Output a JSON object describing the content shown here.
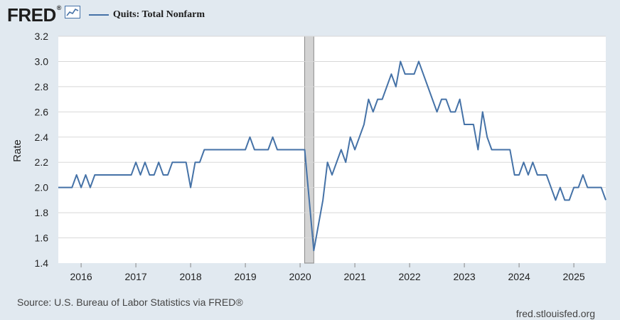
{
  "header": {
    "logo": "FRED",
    "logo_mark": "®",
    "series_label": "Quits: Total Nonfarm"
  },
  "icons": {
    "graph": "line-graph-icon"
  },
  "colors": {
    "background": "#e1e9f0",
    "plot_background": "#ffffff",
    "series": "#4572a7",
    "recession": "#d3d3d3",
    "grid": "#d8d8d8"
  },
  "footer": {
    "source": "Source: U.S. Bureau of Labor Statistics via FRED®",
    "credit": "fred.stlouisfed.org"
  },
  "chart_data": {
    "type": "line",
    "title": "",
    "xlabel": "",
    "ylabel": "Rate",
    "ylim": [
      1.4,
      3.2
    ],
    "yticks": [
      "1.4",
      "1.6",
      "1.8",
      "2.0",
      "2.2",
      "2.4",
      "2.6",
      "2.8",
      "3.0",
      "3.2"
    ],
    "xlim": [
      "2015-08",
      "2025-08"
    ],
    "xticks": [
      "2016",
      "2017",
      "2018",
      "2019",
      "2020",
      "2021",
      "2022",
      "2023",
      "2024",
      "2025"
    ],
    "grid": true,
    "recessions": [
      {
        "start": "2020-02",
        "end": "2020-04"
      }
    ],
    "series": [
      {
        "name": "Quits: Total Nonfarm",
        "x": [
          "2015-08",
          "2015-09",
          "2015-10",
          "2015-11",
          "2015-12",
          "2016-01",
          "2016-02",
          "2016-03",
          "2016-04",
          "2016-05",
          "2016-06",
          "2016-07",
          "2016-08",
          "2016-09",
          "2016-10",
          "2016-11",
          "2016-12",
          "2017-01",
          "2017-02",
          "2017-03",
          "2017-04",
          "2017-05",
          "2017-06",
          "2017-07",
          "2017-08",
          "2017-09",
          "2017-10",
          "2017-11",
          "2017-12",
          "2018-01",
          "2018-02",
          "2018-03",
          "2018-04",
          "2018-05",
          "2018-06",
          "2018-07",
          "2018-08",
          "2018-09",
          "2018-10",
          "2018-11",
          "2018-12",
          "2019-01",
          "2019-02",
          "2019-03",
          "2019-04",
          "2019-05",
          "2019-06",
          "2019-07",
          "2019-08",
          "2019-09",
          "2019-10",
          "2019-11",
          "2019-12",
          "2020-01",
          "2020-02",
          "2020-03",
          "2020-04",
          "2020-05",
          "2020-06",
          "2020-07",
          "2020-08",
          "2020-09",
          "2020-10",
          "2020-11",
          "2020-12",
          "2021-01",
          "2021-02",
          "2021-03",
          "2021-04",
          "2021-05",
          "2021-06",
          "2021-07",
          "2021-08",
          "2021-09",
          "2021-10",
          "2021-11",
          "2021-12",
          "2022-01",
          "2022-02",
          "2022-03",
          "2022-04",
          "2022-05",
          "2022-06",
          "2022-07",
          "2022-08",
          "2022-09",
          "2022-10",
          "2022-11",
          "2022-12",
          "2023-01",
          "2023-02",
          "2023-03",
          "2023-04",
          "2023-05",
          "2023-06",
          "2023-07",
          "2023-08",
          "2023-09",
          "2023-10",
          "2023-11",
          "2023-12",
          "2024-01",
          "2024-02",
          "2024-03",
          "2024-04",
          "2024-05",
          "2024-06",
          "2024-07",
          "2024-08",
          "2024-09",
          "2024-10",
          "2024-11",
          "2024-12",
          "2025-01",
          "2025-02",
          "2025-03",
          "2025-04",
          "2025-05",
          "2025-06",
          "2025-07",
          "2025-08"
        ],
        "values": [
          2.0,
          2.0,
          2.0,
          2.0,
          2.1,
          2.0,
          2.1,
          2.0,
          2.1,
          2.1,
          2.1,
          2.1,
          2.1,
          2.1,
          2.1,
          2.1,
          2.1,
          2.2,
          2.1,
          2.2,
          2.1,
          2.1,
          2.2,
          2.1,
          2.1,
          2.2,
          2.2,
          2.2,
          2.2,
          2.0,
          2.2,
          2.2,
          2.3,
          2.3,
          2.3,
          2.3,
          2.3,
          2.3,
          2.3,
          2.3,
          2.3,
          2.3,
          2.4,
          2.3,
          2.3,
          2.3,
          2.3,
          2.4,
          2.3,
          2.3,
          2.3,
          2.3,
          2.3,
          2.3,
          2.3,
          1.9,
          1.5,
          1.7,
          1.9,
          2.2,
          2.1,
          2.2,
          2.3,
          2.2,
          2.4,
          2.3,
          2.4,
          2.5,
          2.7,
          2.6,
          2.7,
          2.7,
          2.8,
          2.9,
          2.8,
          3.0,
          2.9,
          2.9,
          2.9,
          3.0,
          2.9,
          2.8,
          2.7,
          2.6,
          2.7,
          2.7,
          2.6,
          2.6,
          2.7,
          2.5,
          2.5,
          2.5,
          2.3,
          2.6,
          2.4,
          2.3,
          2.3,
          2.3,
          2.3,
          2.3,
          2.1,
          2.1,
          2.2,
          2.1,
          2.2,
          2.1,
          2.1,
          2.1,
          2.0,
          1.9,
          2.0,
          1.9,
          1.9,
          2.0,
          2.0,
          2.1,
          2.0,
          2.0,
          2.0,
          2.0,
          1.9
        ]
      }
    ]
  }
}
